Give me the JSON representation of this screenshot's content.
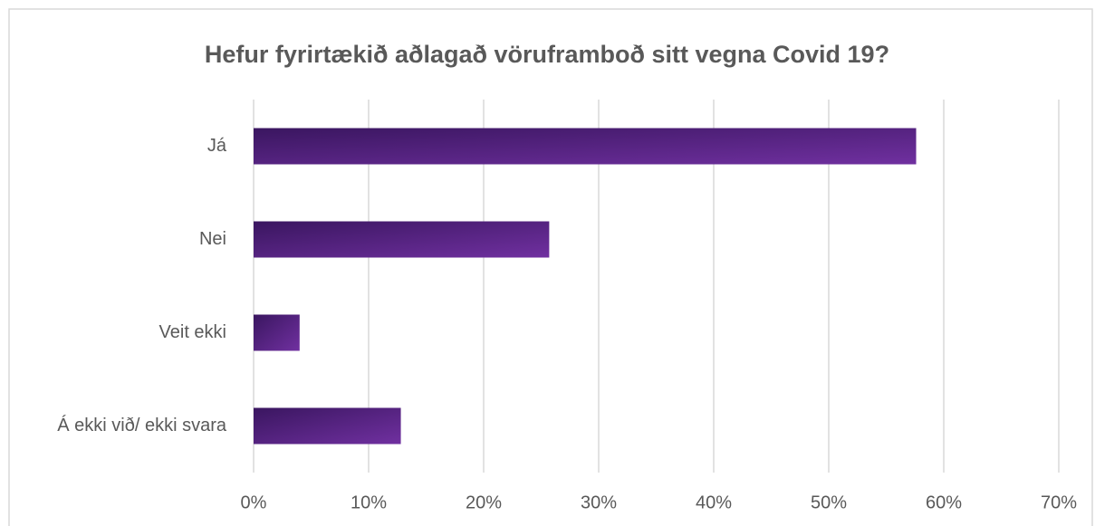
{
  "chart_data": {
    "type": "bar",
    "orientation": "horizontal",
    "title": "Hefur fyrirtækið aðlagað vöruframboð sitt vegna Covid 19?",
    "categories": [
      "Já",
      "Nei",
      "Veit ekki",
      "Á ekki við/ ekki svara"
    ],
    "values": [
      57.6,
      25.7,
      4.0,
      12.8
    ],
    "color": "#7030a0",
    "xlim": [
      0,
      70
    ],
    "xticks": [
      {
        "value": 0,
        "label": "0%"
      },
      {
        "value": 10,
        "label": "10%"
      },
      {
        "value": 20,
        "label": "20%"
      },
      {
        "value": 30,
        "label": "30%"
      },
      {
        "value": 40,
        "label": "40%"
      },
      {
        "value": 50,
        "label": "50%"
      },
      {
        "value": 60,
        "label": "60%"
      },
      {
        "value": 70,
        "label": "70%"
      }
    ],
    "grid": true
  }
}
